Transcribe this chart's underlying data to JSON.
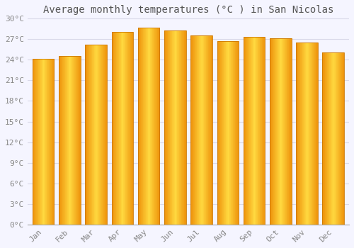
{
  "title": "Average monthly temperatures (°C ) in San Nicolas",
  "months": [
    "Jan",
    "Feb",
    "Mar",
    "Apr",
    "May",
    "Jun",
    "Jul",
    "Aug",
    "Sep",
    "Oct",
    "Nov",
    "Dec"
  ],
  "temperatures": [
    24.1,
    24.6,
    26.2,
    28.1,
    28.7,
    28.3,
    27.6,
    26.7,
    27.3,
    27.1,
    26.5,
    25.1
  ],
  "bar_color_left": "#F5A800",
  "bar_color_center": "#FFD84D",
  "bar_color_right": "#E89000",
  "ylim": [
    0,
    30
  ],
  "yticks": [
    0,
    3,
    6,
    9,
    12,
    15,
    18,
    21,
    24,
    27,
    30
  ],
  "background_color": "#F5F5FF",
  "plot_bg_color": "#F5F5FF",
  "grid_color": "#D8D8E8",
  "title_fontsize": 10,
  "tick_fontsize": 8,
  "title_color": "#555555",
  "tick_color": "#888888"
}
